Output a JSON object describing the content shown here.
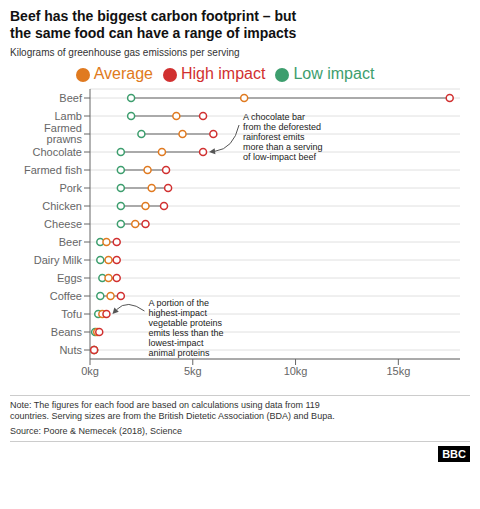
{
  "chart_data": {
    "type": "dumbbell",
    "title": "Beef has the biggest carbon footprint – but\nthe same food can have a range of impacts",
    "subtitle": "Kilograms of greenhouse gas emissions per serving",
    "orientation": "horizontal",
    "categories": [
      "Beef",
      "Lamb",
      "Farmed prawns",
      "Chocolate",
      "Farmed fish",
      "Pork",
      "Chicken",
      "Cheese",
      "Beer",
      "Dairy Milk",
      "Eggs",
      "Coffee",
      "Tofu",
      "Beans",
      "Nuts"
    ],
    "series": [
      {
        "name": "Low impact",
        "color": "#3d9e6e",
        "values": [
          2.0,
          2.0,
          2.5,
          1.5,
          1.5,
          1.5,
          1.5,
          1.5,
          0.5,
          0.5,
          0.6,
          0.5,
          0.4,
          0.25,
          0.2
        ]
      },
      {
        "name": "Average",
        "color": "#e07a20",
        "values": [
          7.5,
          4.2,
          4.5,
          3.5,
          2.8,
          3.0,
          2.7,
          2.2,
          0.8,
          0.9,
          0.9,
          1.0,
          0.6,
          0.35,
          0.2
        ]
      },
      {
        "name": "High impact",
        "color": "#d13030",
        "values": [
          17.5,
          5.5,
          6.0,
          5.5,
          3.7,
          3.8,
          3.6,
          2.7,
          1.3,
          1.3,
          1.3,
          1.5,
          0.8,
          0.45,
          0.2
        ]
      }
    ],
    "color": "#aaaaaa",
    "marker": "circle",
    "xlim": [
      0,
      18
    ],
    "xticks": [
      {
        "value": 0,
        "label": "0kg"
      },
      {
        "value": 5,
        "label": "5kg"
      },
      {
        "value": 10,
        "label": "10kg"
      },
      {
        "value": 15,
        "label": "15kg"
      }
    ],
    "grid": true,
    "legend": "top",
    "annotations": [
      {
        "text": "A chocolate bar\nfrom the deforested\nrainforest emits\nmore than a serving\nof low-impact beef",
        "category": "Chocolate",
        "series": "High impact"
      },
      {
        "text": "A portion of the\nhighest-impact\nvegetable proteins\nemits less than the\nlowest-impact\nanimal proteins",
        "category": "Tofu",
        "series": "High impact"
      }
    ],
    "note": "Note: The figures for each food are based on calculations using data from 119\ncountries. Serving sizes are from the British Dietetic Association (BDA) and Bupa.",
    "source": "Source: Poore & Nemecek (2018), Science",
    "logo": "BBC"
  }
}
